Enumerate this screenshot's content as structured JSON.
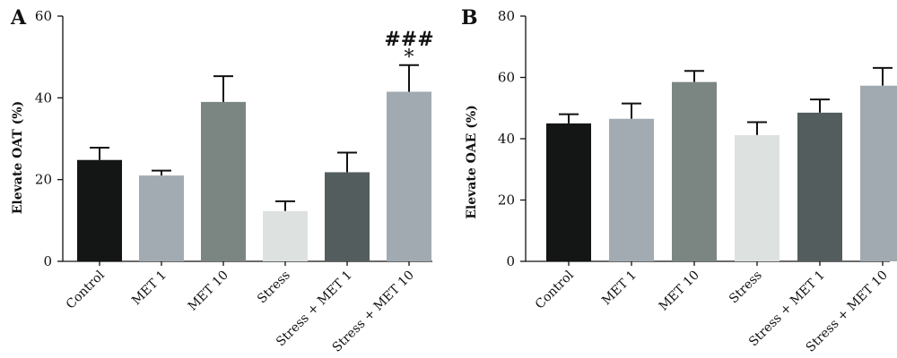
{
  "chart_data": [
    {
      "type": "bar",
      "panel": "A",
      "ylabel": "Elevate OAT (%)",
      "ylim": [
        0,
        60
      ],
      "yticks": [
        0,
        20,
        40,
        60
      ],
      "categories": [
        "Control",
        "MET 1",
        "MET 10",
        "Stress",
        "Stress + MET 1",
        "Stress + MET 10"
      ],
      "values": [
        24.8,
        21.0,
        39.0,
        12.3,
        21.8,
        41.5
      ],
      "errors": [
        3.0,
        1.2,
        6.3,
        2.4,
        4.8,
        6.5
      ],
      "colors": [
        "#141515",
        "#a2abb1",
        "#7b8683",
        "#dde2e1",
        "#545d5d",
        "#a1aab0"
      ],
      "annotations": [
        {
          "category": "Stress + MET 10",
          "text": "###"
        },
        {
          "category": "Stress + MET 10",
          "text": "*"
        }
      ]
    },
    {
      "type": "bar",
      "panel": "B",
      "ylabel": "Elevate OAE (%)",
      "ylim": [
        0,
        80
      ],
      "yticks": [
        0,
        20,
        40,
        60,
        80
      ],
      "categories": [
        "Control",
        "MET 1",
        "MET 10",
        "Stress",
        "Stress + MET 1",
        "Stress + MET 10"
      ],
      "values": [
        45.0,
        46.5,
        58.5,
        41.2,
        48.5,
        57.3
      ],
      "errors": [
        3.0,
        5.0,
        3.6,
        4.2,
        4.3,
        5.8
      ],
      "colors": [
        "#141515",
        "#a2abb1",
        "#7b8683",
        "#dde2e1",
        "#545d5d",
        "#a1aab0"
      ],
      "annotations": []
    }
  ]
}
